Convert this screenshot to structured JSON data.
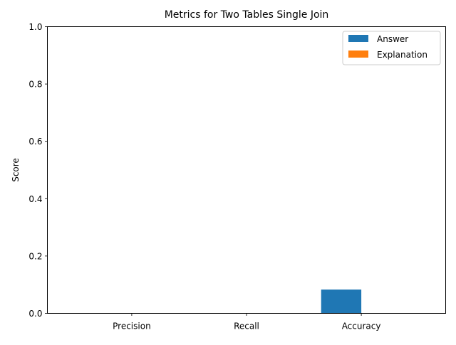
{
  "chart_data": {
    "type": "bar",
    "title": "Metrics for Two Tables Single Join",
    "xlabel": "",
    "ylabel": "Score",
    "categories": [
      "Precision",
      "Recall",
      "Accuracy"
    ],
    "series": [
      {
        "name": "Answer",
        "values": [
          0.0,
          0.0,
          0.083
        ],
        "color": "#1f77b4"
      },
      {
        "name": "Explanation",
        "values": [
          0.0,
          0.0,
          0.0
        ],
        "color": "#ff7f0e"
      }
    ],
    "ylim": [
      0,
      1.0
    ],
    "yticks": [
      0.0,
      0.2,
      0.4,
      0.6,
      0.8,
      1.0
    ],
    "ytick_labels": [
      "0.0",
      "0.2",
      "0.4",
      "0.6",
      "0.8",
      "1.0"
    ],
    "legend_position": "top-right",
    "grid": false
  }
}
